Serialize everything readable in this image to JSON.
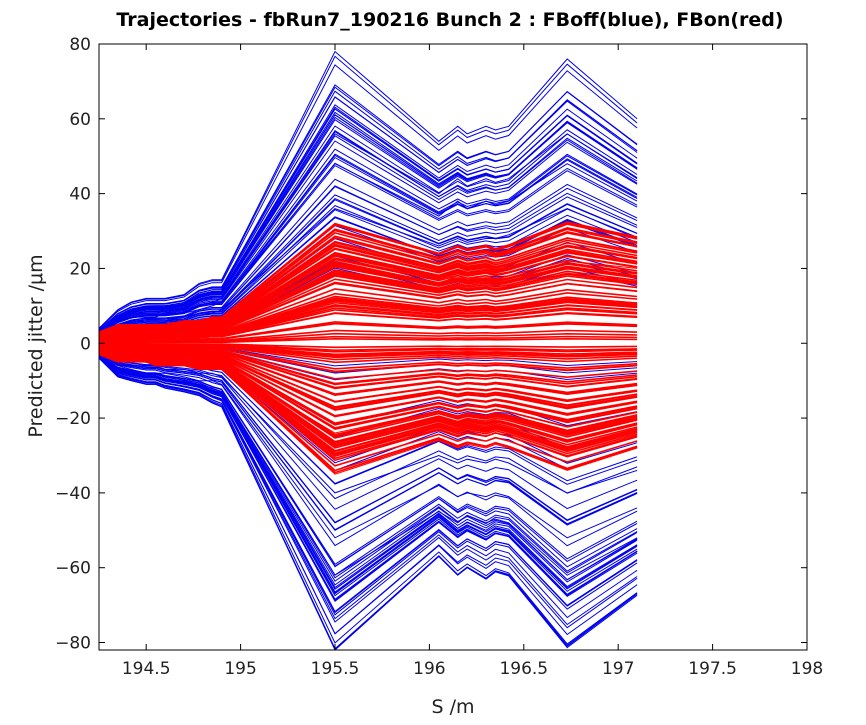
{
  "chart_data": {
    "type": "line",
    "title": "Trajectories - fbRun7_190216 Bunch 2 : FBoff(blue), FBon(red)",
    "xlabel": "S /m",
    "ylabel": "Predicted jitter /μm",
    "xlim": [
      194.25,
      198.0
    ],
    "ylim": [
      -82,
      80
    ],
    "xticks": [
      194.5,
      195,
      195.5,
      196,
      196.5,
      197,
      197.5,
      198
    ],
    "xtick_labels": [
      "194.5",
      "195",
      "195.5",
      "196",
      "196.5",
      "197",
      "197.5",
      "198"
    ],
    "yticks": [
      -80,
      -60,
      -40,
      -20,
      0,
      20,
      40,
      60,
      80
    ],
    "ytick_labels": [
      "−80",
      "−60",
      "−40",
      "−20",
      "0",
      "20",
      "40",
      "60",
      "80"
    ],
    "grid": false,
    "x": [
      194.25,
      194.35,
      194.42,
      194.5,
      194.55,
      194.6,
      194.7,
      194.78,
      194.85,
      194.9,
      195.5,
      196.05,
      196.15,
      196.2,
      196.3,
      196.35,
      196.42,
      196.73,
      197.1
    ],
    "series": [
      {
        "name": "FBoff",
        "color": "#0000ee",
        "trajectories": [
          [
            4,
            9,
            11,
            12,
            12,
            12,
            13,
            16,
            17,
            17,
            78,
            54,
            58,
            56,
            58,
            57,
            58,
            76,
            60
          ],
          [
            3,
            7,
            8,
            8,
            8,
            9,
            9,
            10,
            11,
            12,
            56,
            40,
            44,
            42,
            44,
            43,
            44,
            56,
            44
          ],
          [
            3,
            6,
            7,
            7,
            7,
            8,
            8,
            9,
            10,
            11,
            48,
            34,
            38,
            36,
            38,
            37,
            38,
            48,
            38
          ],
          [
            2,
            5,
            6,
            6,
            6,
            6,
            7,
            8,
            8,
            9,
            36,
            26,
            28,
            27,
            28,
            28,
            29,
            36,
            28
          ],
          [
            -4,
            -9,
            -10,
            -11,
            -11,
            -12,
            -13,
            -14,
            -16,
            -17,
            -82,
            -57,
            -62,
            -60,
            -63,
            -61,
            -62,
            -81,
            -67
          ],
          [
            -3,
            -7,
            -8,
            -9,
            -9,
            -10,
            -10,
            -11,
            -12,
            -13,
            -62,
            -45,
            -48,
            -46,
            -48,
            -47,
            -48,
            -62,
            -52
          ],
          [
            -3,
            -6,
            -7,
            -8,
            -8,
            -8,
            -9,
            -10,
            -10,
            -11,
            -52,
            -38,
            -41,
            -40,
            -41,
            -40,
            -41,
            -52,
            -44
          ],
          [
            -2,
            -5,
            -6,
            -6,
            -6,
            -7,
            -7,
            -8,
            -8,
            -9,
            -40,
            -30,
            -32,
            -31,
            -32,
            -31,
            -32,
            -40,
            -34
          ]
        ]
      },
      {
        "name": "FBon",
        "color": "#ff0000",
        "trajectories": [
          [
            3,
            5,
            5,
            5,
            5,
            5,
            6,
            6,
            7,
            7,
            32,
            24,
            26,
            25,
            26,
            25,
            26,
            32,
            28
          ],
          [
            2,
            4,
            4,
            4,
            4,
            4,
            5,
            5,
            5,
            6,
            22,
            16,
            18,
            17,
            18,
            17,
            18,
            22,
            20
          ],
          [
            -3,
            -5,
            -5,
            -5,
            -6,
            -6,
            -6,
            -7,
            -7,
            -7,
            -35,
            -26,
            -28,
            -27,
            -28,
            -27,
            -28,
            -34,
            -28
          ],
          [
            -2,
            -4,
            -4,
            -4,
            -4,
            -5,
            -5,
            -5,
            -6,
            -6,
            -24,
            -18,
            -20,
            -19,
            -20,
            -19,
            -20,
            -24,
            -20
          ]
        ]
      }
    ]
  }
}
